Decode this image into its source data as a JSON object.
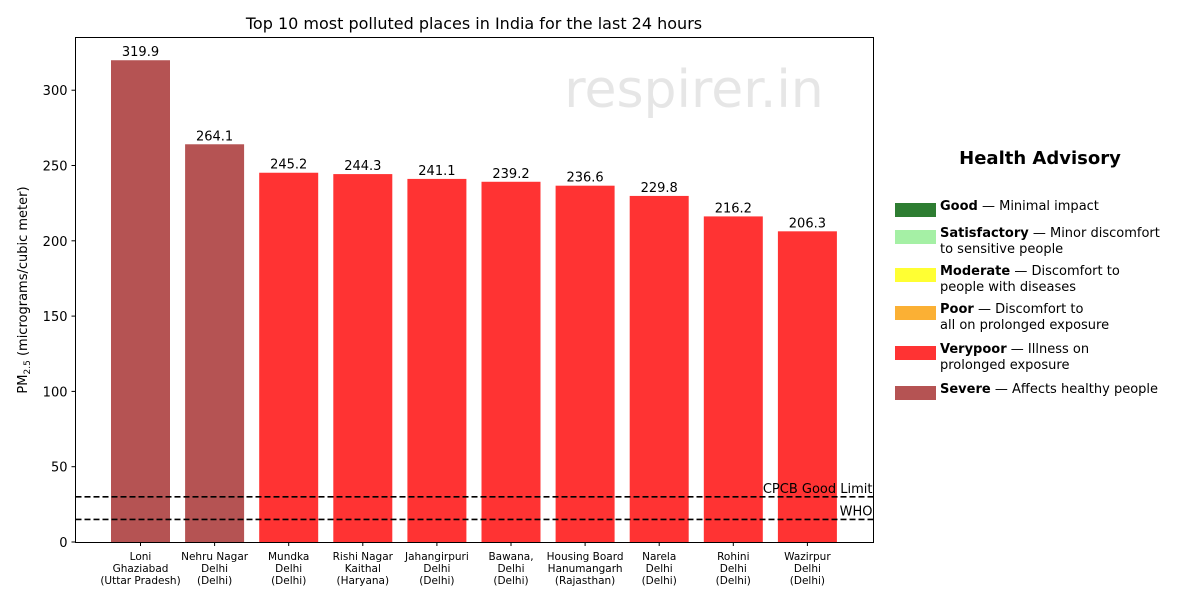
{
  "chart_data": {
    "type": "bar",
    "title": "Top 10 most polluted places in India for the last 24 hours",
    "ylabel_main": "PM",
    "ylabel_sub": "2.5",
    "ylabel_rest": " (micrograms/cubic meter)",
    "ylim": [
      0,
      335
    ],
    "yticks": [
      "0",
      "50",
      "100",
      "150",
      "200",
      "250",
      "300"
    ],
    "categories": [
      [
        "Loni",
        "Ghaziabad",
        "(Uttar Pradesh)"
      ],
      [
        "Nehru Nagar",
        "Delhi",
        "(Delhi)"
      ],
      [
        "Mundka",
        "Delhi",
        "(Delhi)"
      ],
      [
        "Rishi Nagar",
        "Kaithal",
        "(Haryana)"
      ],
      [
        "Jahangirpuri",
        "Delhi",
        "(Delhi)"
      ],
      [
        "Bawana,",
        "Delhi",
        "(Delhi)"
      ],
      [
        "Housing Board",
        "Hanumangarh",
        "(Rajasthan)"
      ],
      [
        "Narela",
        "Delhi",
        "(Delhi)"
      ],
      [
        "Rohini",
        "Delhi",
        "(Delhi)"
      ],
      [
        "Wazirpur",
        "Delhi",
        "(Delhi)"
      ]
    ],
    "values": [
      319.9,
      264.1,
      245.2,
      244.3,
      241.1,
      239.2,
      236.6,
      229.8,
      216.2,
      206.3
    ],
    "value_labels": [
      "319.9",
      "264.1",
      "245.2",
      "244.3",
      "241.1",
      "239.2",
      "236.6",
      "229.8",
      "216.2",
      "206.3"
    ],
    "bar_colors": [
      "#b55353",
      "#b55353",
      "#ff3333",
      "#ff3333",
      "#ff3333",
      "#ff3333",
      "#ff3333",
      "#ff3333",
      "#ff3333",
      "#ff3333"
    ],
    "reference_lines": [
      {
        "label": "CPCB Good Limit",
        "value": 30
      },
      {
        "label": "WHO",
        "value": 15
      }
    ],
    "watermark": "respirer.in",
    "grid": false,
    "legend_placement": "right"
  },
  "legend": {
    "title": "Health Advisory",
    "items": [
      {
        "name": "Good",
        "desc_1": " — Minimal impact",
        "desc_2": "",
        "color": "#2e7d32"
      },
      {
        "name": "Satisfactory",
        "desc_1": " — Minor discomfort",
        "desc_2": "to sensitive people",
        "color": "#a5f0a5"
      },
      {
        "name": "Moderate",
        "desc_1": " — Discomfort to",
        "desc_2": "people with diseases",
        "color": "#ffff33"
      },
      {
        "name": "Poor",
        "desc_1": " — Discomfort to",
        "desc_2": "all on prolonged exposure",
        "color": "#fbb034"
      },
      {
        "name": "Verypoor",
        "desc_1": " — Illness on",
        "desc_2": "prolonged exposure",
        "color": "#ff3333"
      },
      {
        "name": "Severe",
        "desc_1": " — Affects healthy people",
        "desc_2": "",
        "color": "#b55353"
      }
    ]
  }
}
